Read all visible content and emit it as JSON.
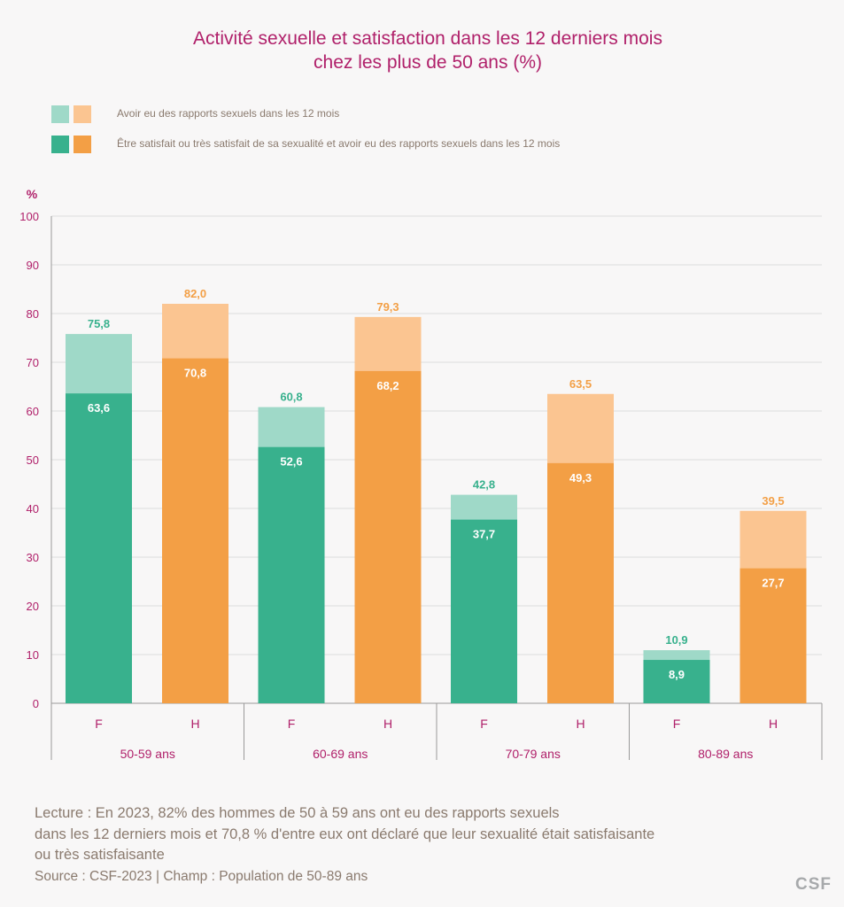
{
  "title": {
    "line1": "Activité sexuelle et satisfaction dans les 12 derniers mois",
    "line2": "chez les plus de 50 ans (%)"
  },
  "legend": [
    {
      "label": "Avoir eu des rapports sexuels dans les 12 mois",
      "colors": [
        "#9fd9c8",
        "#fbc591"
      ]
    },
    {
      "label": "Être satisfait ou très satisfait de sa sexualité et avoir eu des rapports sexuels dans les 12 mois",
      "colors": [
        "#38b18d",
        "#f39f45"
      ]
    }
  ],
  "footer": {
    "lecture_line1": "Lecture :  En 2023, 82% des hommes de 50 à 59 ans ont eu des rapports sexuels",
    "lecture_line2": "dans les 12 derniers mois et 70,8 % d'entre eux ont déclaré que leur sexualité était satisfaisante",
    "lecture_line3": "ou très satisfaisante",
    "source": "Source : CSF-2023  |  Champ : Population de 50-89 ans"
  },
  "logo": "CSF",
  "chart_data": {
    "type": "bar",
    "title": "Activité sexuelle et satisfaction dans les 12 derniers mois chez les plus de 50 ans (%)",
    "ylabel": "%",
    "ylim": [
      0,
      100
    ],
    "yticks": [
      "0",
      "10",
      "20",
      "30",
      "40",
      "50",
      "60",
      "70",
      "80",
      "90",
      "100"
    ],
    "groups": [
      "50-59 ans",
      "60-69 ans",
      "70-79 ans",
      "80-89 ans"
    ],
    "sub_categories": [
      "F",
      "H"
    ],
    "series": [
      {
        "name": "Avoir eu des rapports sexuels dans les 12 mois",
        "sex": "F",
        "values": [
          75.8,
          60.8,
          42.8,
          10.9
        ],
        "labels": [
          "75,8",
          "60,8",
          "42,8",
          "10,9"
        ],
        "color": "#9fd9c8",
        "label_color": "#38b18d"
      },
      {
        "name": "Avoir eu des rapports sexuels dans les 12 mois",
        "sex": "H",
        "values": [
          82.0,
          79.3,
          63.5,
          39.5
        ],
        "labels": [
          "82,0",
          "79,3",
          "63,5",
          "39,5"
        ],
        "color": "#fbc591",
        "label_color": "#f39f45"
      },
      {
        "name": "Être satisfait ou très satisfait de sa sexualité et avoir eu des rapports sexuels dans les 12 mois",
        "sex": "F",
        "values": [
          63.6,
          52.6,
          37.7,
          8.9
        ],
        "labels": [
          "63,6",
          "52,6",
          "37,7",
          "8,9"
        ],
        "color": "#38b18d",
        "label_color": "#ffffff"
      },
      {
        "name": "Être satisfait ou très satisfait de sa sexualité et avoir eu des rapports sexuels dans les 12 mois",
        "sex": "H",
        "values": [
          70.8,
          68.2,
          49.3,
          27.7
        ],
        "labels": [
          "70,8",
          "68,2",
          "49,3",
          "27,7"
        ],
        "color": "#f39f45",
        "label_color": "#ffffff"
      }
    ],
    "colors": {
      "axis_label": "#b0206a",
      "grid": "#dcdcdc",
      "axis": "#9a9a9a"
    }
  }
}
